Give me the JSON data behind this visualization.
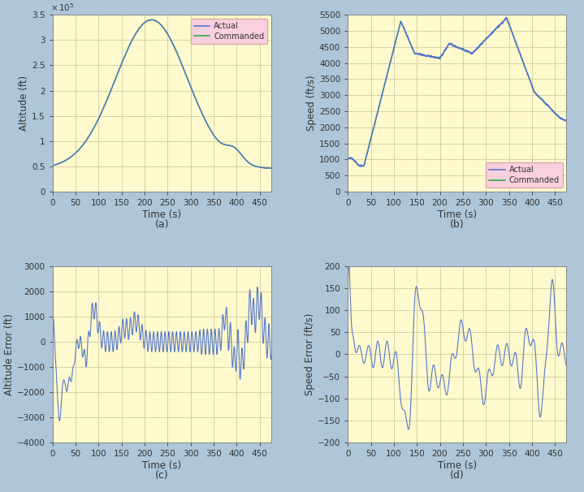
{
  "fig_bg_color": "#aec6d8",
  "plot_bg_color": "#fffacd",
  "actual_color": "#5577cc",
  "commanded_color": "#33aa44",
  "legend_bg_color": "#f9d0dd",
  "legend_edge_color": "#ddaaaa",
  "grid_color": "#d0cba0",
  "spine_color": "#888888",
  "label_color": "#333333",
  "tick_fontsize": 7.5,
  "label_fontsize": 8.5,
  "subplot_label_fontsize": 9,
  "xlim": [
    0,
    475
  ],
  "xticks": [
    0,
    50,
    100,
    150,
    200,
    250,
    300,
    350,
    400,
    450
  ],
  "alt_ylim": [
    0,
    350000
  ],
  "alt_yticks": [
    0,
    50000,
    100000,
    150000,
    200000,
    250000,
    300000,
    350000
  ],
  "alt_ytick_labels": [
    "0",
    "0.5",
    "1",
    "1.5",
    "2",
    "2.5",
    "3",
    "3.5"
  ],
  "speed_ylim": [
    0,
    5500
  ],
  "speed_yticks": [
    0,
    500,
    1000,
    1500,
    2000,
    2500,
    3000,
    3500,
    4000,
    4500,
    5000,
    5500
  ],
  "alt_err_ylim": [
    -4000,
    3000
  ],
  "alt_err_yticks": [
    -4000,
    -3000,
    -2000,
    -1000,
    0,
    1000,
    2000,
    3000
  ],
  "speed_err_ylim": [
    -200,
    200
  ],
  "speed_err_yticks": [
    -200,
    -150,
    -100,
    -50,
    0,
    50,
    100,
    150,
    200
  ]
}
